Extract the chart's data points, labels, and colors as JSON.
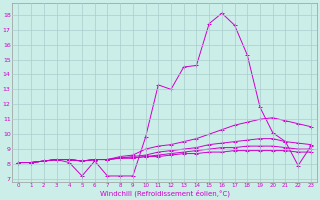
{
  "xlabel": "Windchill (Refroidissement éolien,°C)",
  "bg_color": "#cceee8",
  "grid_color": "#aacccc",
  "line_color": "#cc00cc",
  "x": [
    0,
    1,
    2,
    3,
    4,
    5,
    6,
    7,
    8,
    9,
    10,
    11,
    12,
    13,
    14,
    15,
    16,
    17,
    18,
    19,
    20,
    21,
    22,
    23
  ],
  "yticks": [
    7,
    8,
    9,
    10,
    11,
    12,
    13,
    14,
    15,
    16,
    17,
    18
  ],
  "line1": [
    8.1,
    8.1,
    8.2,
    8.3,
    8.1,
    7.2,
    8.2,
    7.2,
    7.2,
    7.2,
    9.8,
    13.3,
    13.0,
    14.5,
    14.6,
    17.4,
    18.1,
    17.3,
    15.3,
    11.8,
    10.1,
    9.5,
    7.9,
    9.2
  ],
  "line2": [
    8.1,
    8.1,
    8.2,
    8.3,
    8.3,
    8.2,
    8.3,
    8.3,
    8.5,
    8.6,
    9.0,
    9.2,
    9.3,
    9.5,
    9.7,
    10.0,
    10.3,
    10.6,
    10.8,
    11.0,
    11.1,
    10.9,
    10.7,
    10.5
  ],
  "line3": [
    8.1,
    8.1,
    8.2,
    8.3,
    8.3,
    8.2,
    8.3,
    8.3,
    8.4,
    8.5,
    8.6,
    8.8,
    8.9,
    9.0,
    9.1,
    9.3,
    9.4,
    9.5,
    9.6,
    9.7,
    9.7,
    9.5,
    9.4,
    9.3
  ],
  "line4": [
    8.1,
    8.1,
    8.2,
    8.3,
    8.3,
    8.2,
    8.3,
    8.3,
    8.4,
    8.4,
    8.5,
    8.6,
    8.7,
    8.8,
    8.9,
    9.0,
    9.1,
    9.1,
    9.2,
    9.2,
    9.2,
    9.1,
    9.0,
    9.0
  ],
  "line5": [
    8.1,
    8.1,
    8.2,
    8.3,
    8.3,
    8.2,
    8.3,
    8.3,
    8.4,
    8.4,
    8.5,
    8.5,
    8.6,
    8.7,
    8.7,
    8.8,
    8.8,
    8.9,
    8.9,
    8.9,
    8.9,
    8.9,
    8.8,
    8.8
  ]
}
